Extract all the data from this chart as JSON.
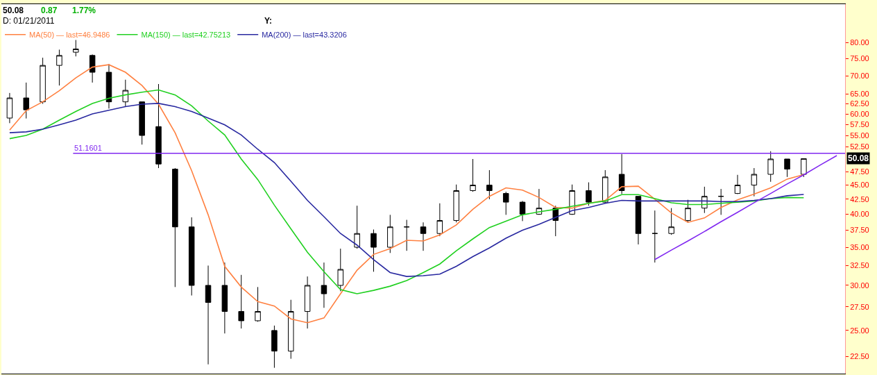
{
  "chart_data": {
    "type": "candlestick",
    "categories": [
      null,
      null,
      null,
      null,
      null,
      null,
      null,
      null,
      null,
      null,
      null,
      null,
      null,
      null,
      null,
      null,
      null,
      null,
      null,
      null,
      null,
      null,
      null,
      null,
      null,
      null,
      null,
      null,
      null,
      null,
      null,
      null,
      null,
      null,
      null,
      null,
      null,
      null,
      null,
      null,
      null,
      null,
      null,
      null,
      null,
      null,
      null,
      null,
      null,
      null,
      null
    ],
    "ohlc": [
      [
        59,
        65.3,
        57.8,
        64
      ],
      [
        64,
        68.1,
        58.9,
        61
      ],
      [
        63,
        75.3,
        62.5,
        73
      ],
      [
        73,
        77.8,
        67.3,
        76
      ],
      [
        77,
        80.9,
        75.7,
        78
      ],
      [
        76,
        76.3,
        68.1,
        71
      ],
      [
        71,
        73.4,
        61.3,
        63
      ],
      [
        63,
        68.9,
        61.8,
        66
      ],
      [
        63,
        63.0,
        53.0,
        55
      ],
      [
        57,
        67.7,
        48.2,
        49
      ],
      [
        48,
        48.2,
        29.8,
        38
      ],
      [
        38,
        39.5,
        28.8,
        30
      ],
      [
        30,
        32.5,
        21.8,
        28
      ],
      [
        30,
        32.9,
        24.7,
        27
      ],
      [
        27,
        31.3,
        25.2,
        26
      ],
      [
        26,
        29.8,
        25.9,
        27
      ],
      [
        25,
        25.5,
        21.5,
        23
      ],
      [
        23,
        28.3,
        22.3,
        27
      ],
      [
        27,
        31.1,
        25.2,
        30
      ],
      [
        30,
        32.9,
        27.4,
        29
      ],
      [
        30,
        34.8,
        29.3,
        32
      ],
      [
        35,
        41.4,
        34.8,
        37
      ],
      [
        37,
        37.6,
        31.7,
        35
      ],
      [
        35,
        39.9,
        34.2,
        38
      ],
      [
        38,
        39.1,
        34.5,
        38
      ],
      [
        38,
        38.7,
        34.5,
        37
      ],
      [
        37,
        41.8,
        36.6,
        39
      ],
      [
        39,
        45.1,
        38.7,
        44
      ],
      [
        44,
        50.0,
        43.8,
        45
      ],
      [
        45,
        47.8,
        42.5,
        44
      ],
      [
        43.5,
        43.8,
        39.9,
        42
      ],
      [
        42,
        42.2,
        38.9,
        40
      ],
      [
        40,
        44.3,
        39.9,
        41
      ],
      [
        41,
        41.4,
        36.6,
        39
      ],
      [
        40,
        45.1,
        39.9,
        44
      ],
      [
        44,
        45.5,
        41.4,
        42
      ],
      [
        42,
        47.8,
        41.8,
        46.5
      ],
      [
        47,
        51.0,
        43.4,
        44
      ],
      [
        43,
        43.0,
        35.4,
        37
      ],
      [
        37,
        40.6,
        32.9,
        37
      ],
      [
        37,
        41.0,
        36.8,
        38
      ],
      [
        39,
        42.4,
        38.7,
        41
      ],
      [
        41,
        44.7,
        40.2,
        43
      ],
      [
        43,
        44.3,
        39.9,
        43
      ],
      [
        43.5,
        46.9,
        43.4,
        45
      ],
      [
        45,
        48.2,
        43.0,
        47
      ],
      [
        47,
        51.6,
        45.6,
        50
      ],
      [
        50,
        50.0,
        46.5,
        48
      ],
      [
        47,
        50.1,
        46.5,
        50.08
      ],
      null,
      null
    ],
    "series": [
      {
        "type": "line",
        "name": "MA(50) — last=46.9486",
        "color": "#ff8040",
        "values": [
          56.2,
          60.8,
          63.0,
          65.9,
          69.4,
          72.5,
          73.2,
          71.0,
          67.3,
          62.4,
          55.6,
          47.7,
          39.9,
          32.4,
          29.8,
          28.1,
          27.6,
          26.2,
          25.8,
          26.3,
          29.0,
          31.9,
          34.0,
          34.8,
          36.0,
          35.9,
          36.8,
          38.3,
          40.8,
          43.0,
          44.5,
          44.1,
          42.8,
          41.1,
          41.0,
          41.8,
          42.3,
          44.7,
          44.8,
          42.5,
          40.2,
          38.7,
          39.4,
          41.1,
          42.4,
          43.4,
          44.5,
          46.1,
          46.95,
          null,
          null
        ]
      },
      {
        "type": "line",
        "name": "MA(150) — last=42.75213",
        "color": "#20d020",
        "values": [
          54.3,
          55.0,
          56.4,
          58.5,
          60.6,
          62.6,
          63.9,
          64.8,
          65.5,
          66.1,
          64.8,
          62.0,
          58.3,
          55.1,
          50.0,
          46.0,
          41.5,
          37.7,
          34.3,
          31.7,
          29.5,
          29.0,
          29.4,
          29.9,
          30.6,
          31.6,
          32.7,
          34.5,
          36.2,
          37.9,
          38.9,
          39.9,
          40.4,
          40.8,
          41.3,
          41.8,
          42.2,
          43.3,
          43.3,
          42.6,
          41.9,
          41.6,
          41.6,
          41.8,
          42.0,
          42.2,
          42.6,
          42.8,
          42.75,
          null,
          null
        ]
      },
      {
        "type": "line",
        "name": "MA(200) — last=43.3206",
        "color": "#2828a0",
        "values": [
          55.6,
          55.8,
          56.4,
          57.4,
          58.5,
          60.0,
          60.9,
          61.8,
          62.4,
          62.6,
          61.8,
          60.6,
          59.0,
          57.4,
          55.1,
          52.0,
          49.3,
          45.7,
          42.3,
          39.6,
          37.0,
          35.3,
          33.3,
          31.6,
          31.1,
          31.2,
          31.4,
          32.4,
          33.7,
          34.9,
          36.3,
          37.5,
          38.4,
          39.5,
          40.6,
          41.1,
          41.8,
          42.3,
          42.2,
          42.2,
          42.2,
          42.2,
          42.2,
          42.1,
          42.1,
          42.3,
          42.6,
          43.1,
          43.32,
          null,
          null
        ]
      },
      {
        "type": "line",
        "color": "#8028f0",
        "values": [
          null,
          null,
          null,
          null,
          null,
          null,
          null,
          null,
          null,
          null,
          null,
          null,
          null,
          null,
          null,
          null,
          null,
          null,
          null,
          null,
          null,
          null,
          null,
          null,
          null,
          null,
          null,
          null,
          null,
          null,
          null,
          null,
          null,
          null,
          null,
          null,
          null,
          null,
          null,
          33.3,
          34.6,
          35.9,
          37.3,
          38.8,
          40.3,
          41.9,
          43.5,
          45.2,
          46.9,
          48.8,
          50.7
        ]
      }
    ],
    "ylim": [
      21,
      93.5
    ],
    "yticks": [
      {
        "value": 22.5,
        "label": "22.50"
      },
      {
        "value": 25,
        "label": "25.00"
      },
      {
        "value": 27.5,
        "label": "27.50"
      },
      {
        "value": 30,
        "label": "30.00"
      },
      {
        "value": 32.5,
        "label": "32.50"
      },
      {
        "value": 35,
        "label": "35.00"
      },
      {
        "value": 37.5,
        "label": "37.50"
      },
      {
        "value": 40,
        "label": "40.00"
      },
      {
        "value": 42.5,
        "label": "42.50"
      },
      {
        "value": 45,
        "label": "45.00"
      },
      {
        "value": 47.5,
        "label": "47.50"
      },
      {
        "value": 52.5,
        "label": "52.50"
      },
      {
        "value": 55,
        "label": "55.00"
      },
      {
        "value": 57.5,
        "label": "57.50"
      },
      {
        "value": 60,
        "label": "60.00"
      },
      {
        "value": 62.5,
        "label": "62.50"
      },
      {
        "value": 65,
        "label": "65.00"
      },
      {
        "value": 70,
        "label": "70.00"
      },
      {
        "value": 75,
        "label": "75.00"
      },
      {
        "value": 80,
        "label": "80.00"
      }
    ],
    "log": true,
    "tick_labels": "y",
    "legend": "top left",
    "ref_lines": [
      {
        "axis": "y",
        "value": 51.1601,
        "label": "51.1601",
        "color": "#8028f0"
      }
    ],
    "annotations": [
      "50.08",
      "0.87",
      "1.77%",
      "D: 01/21/2011",
      "Y:",
      {
        "text": "50.08",
        "y": 50.08
      }
    ]
  }
}
